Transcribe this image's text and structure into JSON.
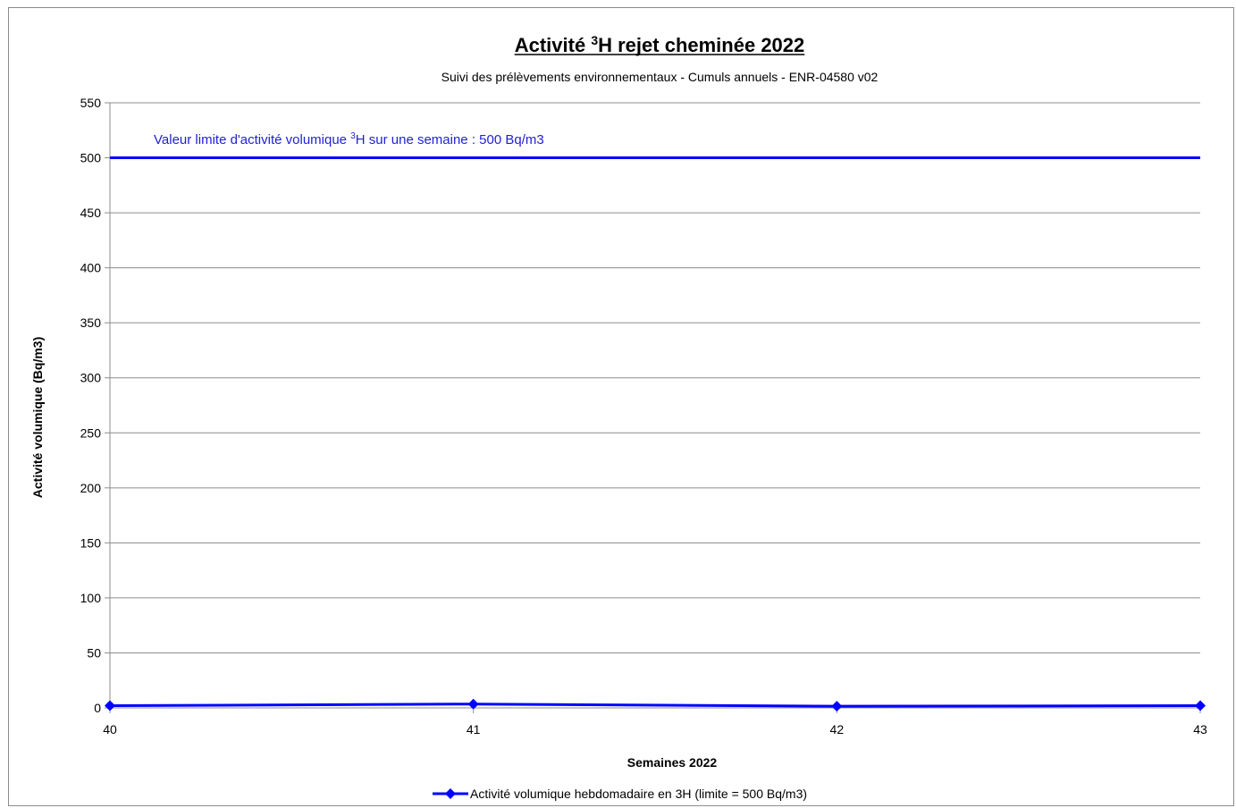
{
  "chart_data": {
    "type": "line",
    "title": "Activité 3H rejet cheminée 2022",
    "title_parts": {
      "before": "Activité ",
      "sup": "3",
      "after": "H rejet cheminée 2022"
    },
    "subtitle": "Suivi des prélèvements environnementaux - Cumuls annuels - ENR-04580 v02",
    "xlabel": "Semaines 2022",
    "ylabel": "Activité volumique (Bq/m3)",
    "x": [
      40,
      41,
      42,
      43
    ],
    "x_ticks": [
      "40",
      "41",
      "42",
      "43"
    ],
    "xlim": [
      40,
      43
    ],
    "ylim": [
      0,
      550
    ],
    "y_ticks": [
      0,
      50,
      100,
      150,
      200,
      250,
      300,
      350,
      400,
      450,
      500,
      550
    ],
    "grid": true,
    "series": [
      {
        "name": "Activité volumique hebdomadaire en 3H  (limite = 500 Bq/m3)",
        "values": [
          2,
          3.5,
          1.5,
          2
        ],
        "color": "#0000ff",
        "marker": "diamond"
      }
    ],
    "reference_line": {
      "value": 500,
      "color": "#0000ff"
    },
    "annotation": {
      "before": "Valeur limite d'activité volumique ",
      "sup": "3",
      "after": "H  sur une semaine : 500 Bq/m3",
      "color": "#1f1fd6"
    },
    "legend_position": "bottom"
  }
}
